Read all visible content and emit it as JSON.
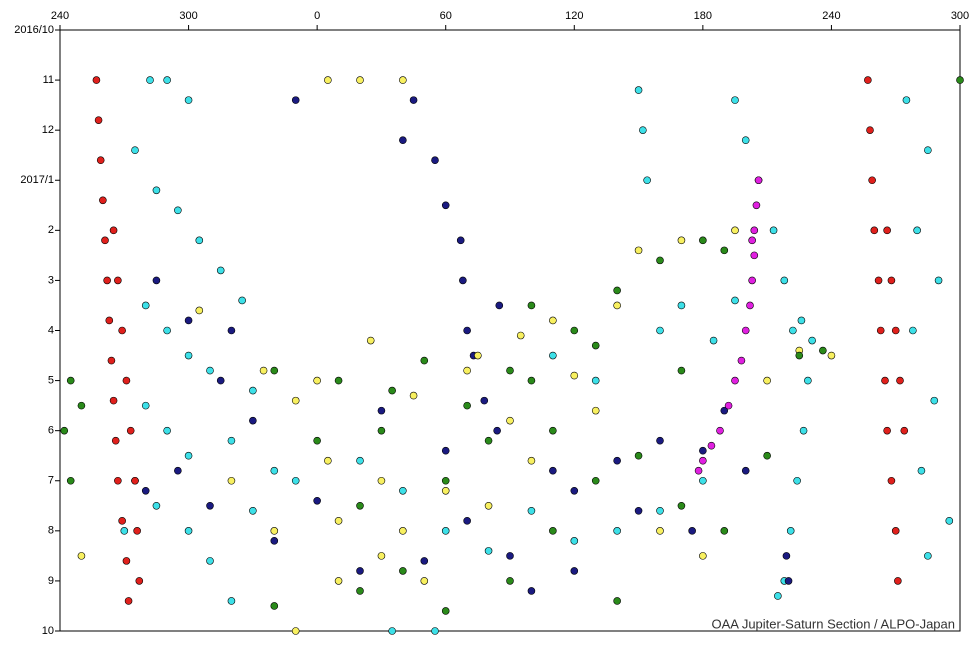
{
  "chart_data": {
    "type": "scatter",
    "annotation": "OAA Jupiter-Saturn Section / ALPO-Japan",
    "xlim": [
      -120,
      300
    ],
    "xticks": [
      {
        "value": -120,
        "label": "240"
      },
      {
        "value": -60,
        "label": "300"
      },
      0,
      60,
      120,
      180,
      240,
      300
    ],
    "ylim": [
      0,
      12
    ],
    "y_reversed": true,
    "yticks": [
      {
        "value": 0,
        "label": "2016/10"
      },
      {
        "value": 1,
        "label": "11"
      },
      {
        "value": 2,
        "label": "12"
      },
      {
        "value": 3,
        "label": "2017/1"
      },
      {
        "value": 4,
        "label": "2"
      },
      {
        "value": 5,
        "label": "3"
      },
      {
        "value": 6,
        "label": "4"
      },
      {
        "value": 7,
        "label": "5"
      },
      {
        "value": 8,
        "label": "6"
      },
      {
        "value": 9,
        "label": "7"
      },
      {
        "value": 10,
        "label": "8"
      },
      {
        "value": 11,
        "label": "9"
      },
      {
        "value": 12,
        "label": "10"
      }
    ],
    "series": [
      {
        "color": "#3de0e8",
        "x": [
          -78,
          -70,
          -60,
          -85,
          -75,
          -65,
          -55,
          -45,
          -35,
          -80,
          -70,
          -60,
          -50,
          -80,
          -70,
          -60,
          -40,
          -30,
          -20,
          -75,
          -60,
          -50,
          -30,
          -10,
          20,
          40,
          60,
          80,
          100,
          120,
          140,
          160,
          180,
          150,
          152,
          154,
          195,
          200,
          206,
          213,
          218,
          222,
          226,
          231,
          229,
          227,
          224,
          221,
          218,
          215,
          35,
          55,
          275,
          285,
          280,
          290,
          278,
          288,
          282,
          295,
          285,
          -90,
          -40,
          110,
          130,
          160,
          170,
          185,
          195
        ],
        "values": [
          1,
          1,
          1.4,
          2.4,
          3.2,
          3.6,
          4.2,
          4.8,
          5.4,
          5.5,
          6,
          6.5,
          6.8,
          7.5,
          8,
          8.5,
          8.2,
          7.2,
          8.8,
          9.5,
          10,
          10.6,
          9.6,
          9,
          8.6,
          9.2,
          10,
          10.4,
          9.6,
          10.2,
          10,
          9.6,
          9,
          1.2,
          2,
          3,
          1.4,
          2.2,
          3,
          4,
          5,
          6,
          5.8,
          6.2,
          7,
          8,
          9,
          10,
          11,
          11.3,
          12,
          12,
          1.4,
          2.4,
          4,
          5,
          6,
          7.4,
          8.8,
          9.8,
          10.5,
          10,
          11.4,
          6.5,
          7,
          6,
          5.5,
          6.2,
          5.4
        ]
      },
      {
        "color": "#1a1a80",
        "x": [
          -10,
          45,
          40,
          55,
          60,
          67,
          68,
          70,
          73,
          78,
          84,
          -75,
          -60,
          -45,
          -30,
          -65,
          -50,
          -20,
          0,
          20,
          50,
          70,
          90,
          100,
          120,
          140,
          160,
          180,
          190,
          200,
          -80,
          -40,
          30,
          60,
          120,
          150,
          175,
          220,
          219,
          85,
          110
        ],
        "values": [
          1.4,
          1.4,
          2.2,
          2.6,
          3.5,
          4.2,
          5,
          6,
          6.5,
          7.4,
          8,
          5,
          5.8,
          7,
          7.8,
          8.8,
          9.5,
          10.2,
          9.4,
          10.8,
          10.6,
          9.8,
          10.5,
          11.2,
          10.8,
          8.6,
          8.2,
          8.4,
          7.6,
          8.8,
          9.2,
          6,
          7.6,
          8.4,
          9.2,
          9.6,
          10,
          11,
          10.5,
          5.5,
          8.8
        ]
      },
      {
        "color": "#f8f060",
        "x": [
          5,
          20,
          40,
          -55,
          -25,
          -10,
          5,
          25,
          45,
          70,
          95,
          110,
          140,
          150,
          170,
          195,
          -40,
          -20,
          10,
          30,
          50,
          80,
          100,
          130,
          30,
          60,
          90,
          120,
          160,
          180,
          210,
          225,
          240,
          -10,
          -85,
          -110,
          10,
          0,
          40,
          75
        ],
        "values": [
          1,
          1,
          1,
          5.6,
          6.8,
          7.4,
          8.6,
          6.2,
          7.3,
          6.8,
          6.1,
          5.8,
          5.5,
          4.4,
          4.2,
          4,
          9,
          10,
          9.8,
          10.5,
          11,
          9.5,
          8.6,
          7.6,
          9,
          9.2,
          7.8,
          6.9,
          10,
          10.5,
          7,
          6.4,
          6.5,
          12,
          9,
          10.5,
          11,
          7,
          10,
          6.5
        ]
      },
      {
        "color": "#2a8a1a",
        "x": [
          -115,
          -118,
          -115,
          -110,
          -20,
          0,
          20,
          40,
          60,
          80,
          100,
          120,
          140,
          160,
          180,
          190,
          30,
          50,
          70,
          90,
          110,
          130,
          150,
          170,
          20,
          60,
          90,
          110,
          140,
          -20,
          10,
          35,
          100,
          130,
          170,
          190,
          210,
          225,
          236,
          300
        ],
        "values": [
          7,
          8,
          9,
          7.5,
          6.8,
          8.2,
          9.5,
          10.8,
          9,
          8.2,
          7,
          6,
          5.2,
          4.6,
          4.2,
          4.4,
          8,
          6.6,
          7.5,
          6.8,
          8,
          9,
          8.5,
          9.5,
          11.2,
          11.6,
          11,
          10,
          11.4,
          11.5,
          7,
          7.2,
          5.5,
          6.3,
          6.8,
          10,
          8.5,
          6.5,
          6.4,
          1
        ]
      },
      {
        "color": "#e020e0",
        "x": [
          206,
          205,
          204,
          204,
          203,
          202,
          200,
          198,
          195,
          192,
          188,
          184,
          180,
          178,
          203
        ],
        "values": [
          3,
          3.5,
          4,
          4.5,
          5,
          5.5,
          6,
          6.6,
          7,
          7.5,
          8,
          8.3,
          8.6,
          8.8,
          4.2
        ]
      },
      {
        "color": "#e0201c",
        "x": [
          -103,
          -102,
          -101,
          -100,
          -99,
          -98,
          -97,
          -96,
          -95,
          -94,
          -93,
          -91,
          -89,
          -88,
          -95,
          -93,
          -91,
          -89,
          -87,
          -85,
          -84,
          -83,
          257,
          258,
          259,
          260,
          262,
          263,
          265,
          266,
          268,
          270,
          271,
          266,
          268,
          270,
          272,
          274
        ],
        "values": [
          1,
          1.8,
          2.6,
          3.4,
          4.2,
          5,
          5.8,
          6.6,
          7.4,
          8.2,
          9,
          9.8,
          10.6,
          11.4,
          4,
          5,
          6,
          7,
          8,
          9,
          10,
          11,
          1,
          2,
          3,
          4,
          5,
          6,
          7,
          8,
          9,
          10,
          11,
          4,
          5,
          6,
          7,
          8
        ]
      }
    ]
  }
}
